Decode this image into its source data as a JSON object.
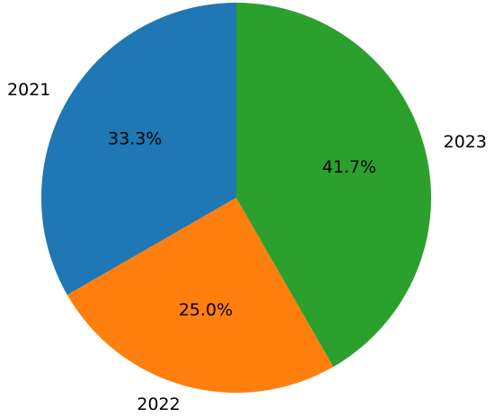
{
  "chart_data": {
    "type": "pie",
    "categories": [
      "2021",
      "2022",
      "2023"
    ],
    "values": [
      33.3,
      25.0,
      41.7
    ],
    "value_labels": [
      "33.3%",
      "25.0%",
      "41.7%"
    ],
    "colors": [
      "#1f77b4",
      "#ff7f0e",
      "#2ca02c"
    ]
  }
}
